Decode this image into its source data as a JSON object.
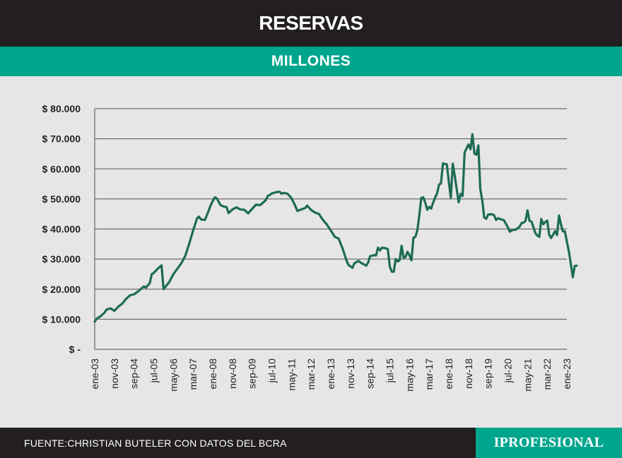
{
  "header": {
    "title": "RESERVAS",
    "subtitle": "MILLONES"
  },
  "footer": {
    "source": "FUENTE:CHRISTIAN BUTELER CON DATOS DEL BCRA",
    "logo": "IPROFESIONAL"
  },
  "colors": {
    "line": "#1d6b55",
    "accent": "#00a58e",
    "dark": "#231f20",
    "grid": "#6e6e6e"
  },
  "chart_data": {
    "type": "line",
    "title": "RESERVAS",
    "subtitle": "MILLONES",
    "xlabel": "",
    "ylabel": "",
    "ylim": [
      0,
      80000
    ],
    "grid": true,
    "y_ticks": [
      {
        "value": 80000,
        "label": "$ 80.000"
      },
      {
        "value": 70000,
        "label": "$ 70.000"
      },
      {
        "value": 60000,
        "label": "$ 60.000"
      },
      {
        "value": 50000,
        "label": "$ 50.000"
      },
      {
        "value": 40000,
        "label": "$ 40.000"
      },
      {
        "value": 30000,
        "label": "$ 30.000"
      },
      {
        "value": 20000,
        "label": "$ 20.000"
      },
      {
        "value": 10000,
        "label": "$ 10.000"
      },
      {
        "value": 0,
        "label": "$ -"
      }
    ],
    "x_ticks": [
      {
        "x": 0,
        "label": "ene-03"
      },
      {
        "x": 10,
        "label": "nov-03"
      },
      {
        "x": 20,
        "label": "sep-04"
      },
      {
        "x": 30,
        "label": "jul-05"
      },
      {
        "x": 40,
        "label": "may-06"
      },
      {
        "x": 50,
        "label": "mar-07"
      },
      {
        "x": 60,
        "label": "ene-08"
      },
      {
        "x": 70,
        "label": "nov-08"
      },
      {
        "x": 80,
        "label": "sep-09"
      },
      {
        "x": 90,
        "label": "jul-10"
      },
      {
        "x": 100,
        "label": "may-11"
      },
      {
        "x": 110,
        "label": "mar-12"
      },
      {
        "x": 120,
        "label": "ene-13"
      },
      {
        "x": 130,
        "label": "nov-13"
      },
      {
        "x": 140,
        "label": "sep-14"
      },
      {
        "x": 150,
        "label": "jul-15"
      },
      {
        "x": 160,
        "label": "may-16"
      },
      {
        "x": 170,
        "label": "mar-17"
      },
      {
        "x": 180,
        "label": "ene-18"
      },
      {
        "x": 190,
        "label": "nov-18"
      },
      {
        "x": 200,
        "label": "sep-19"
      },
      {
        "x": 210,
        "label": "jul-20"
      },
      {
        "x": 220,
        "label": "may-21"
      },
      {
        "x": 230,
        "label": "mar-22"
      },
      {
        "x": 240,
        "label": "ene-23"
      }
    ],
    "x_range": [
      0,
      240
    ],
    "series": [
      {
        "name": "Reservas",
        "points": [
          [
            0,
            9200
          ],
          [
            1,
            10200
          ],
          [
            3,
            11000
          ],
          [
            5,
            12200
          ],
          [
            6,
            13200
          ],
          [
            8,
            13600
          ],
          [
            10,
            12800
          ],
          [
            12,
            14200
          ],
          [
            14,
            15200
          ],
          [
            16,
            16800
          ],
          [
            18,
            18000
          ],
          [
            20,
            18300
          ],
          [
            22,
            19200
          ],
          [
            24,
            20400
          ],
          [
            25,
            20900
          ],
          [
            26,
            20500
          ],
          [
            28,
            22000
          ],
          [
            29,
            25000
          ],
          [
            30,
            25400
          ],
          [
            32,
            26800
          ],
          [
            34,
            27900
          ],
          [
            35,
            20000
          ],
          [
            36,
            20800
          ],
          [
            38,
            22500
          ],
          [
            40,
            25000
          ],
          [
            42,
            26800
          ],
          [
            44,
            28600
          ],
          [
            46,
            31000
          ],
          [
            48,
            35000
          ],
          [
            50,
            39500
          ],
          [
            52,
            43500
          ],
          [
            53,
            44100
          ],
          [
            54,
            43200
          ],
          [
            56,
            43000
          ],
          [
            58,
            46200
          ],
          [
            59,
            48000
          ],
          [
            61,
            50500
          ],
          [
            62,
            50200
          ],
          [
            64,
            47900
          ],
          [
            66,
            47400
          ],
          [
            67,
            47300
          ],
          [
            68,
            45300
          ],
          [
            70,
            46500
          ],
          [
            72,
            47200
          ],
          [
            74,
            46500
          ],
          [
            76,
            46400
          ],
          [
            78,
            45200
          ],
          [
            80,
            46700
          ],
          [
            82,
            48100
          ],
          [
            84,
            47900
          ],
          [
            86,
            49000
          ],
          [
            87,
            49600
          ],
          [
            88,
            51000
          ],
          [
            89,
            51300
          ],
          [
            90,
            51800
          ],
          [
            92,
            52200
          ],
          [
            94,
            52400
          ],
          [
            95,
            51700
          ],
          [
            96,
            52000
          ],
          [
            98,
            51700
          ],
          [
            100,
            50300
          ],
          [
            102,
            47600
          ],
          [
            103,
            46000
          ],
          [
            105,
            46500
          ],
          [
            107,
            47000
          ],
          [
            108,
            47800
          ],
          [
            110,
            46300
          ],
          [
            112,
            45500
          ],
          [
            114,
            45000
          ],
          [
            116,
            43000
          ],
          [
            118,
            41500
          ],
          [
            119,
            40500
          ],
          [
            121,
            38500
          ],
          [
            122,
            37400
          ],
          [
            124,
            36800
          ],
          [
            126,
            33500
          ],
          [
            127,
            31500
          ],
          [
            128,
            29500
          ],
          [
            129,
            28000
          ],
          [
            130,
            27600
          ],
          [
            131,
            27100
          ],
          [
            132,
            28600
          ],
          [
            134,
            29400
          ],
          [
            136,
            28500
          ],
          [
            137,
            28200
          ],
          [
            138,
            27800
          ],
          [
            139,
            28900
          ],
          [
            140,
            31000
          ],
          [
            142,
            31300
          ],
          [
            143,
            31200
          ],
          [
            144,
            33800
          ],
          [
            145,
            32900
          ],
          [
            146,
            33800
          ],
          [
            148,
            33600
          ],
          [
            149,
            33300
          ],
          [
            150,
            27500
          ],
          [
            151,
            25800
          ],
          [
            152,
            25800
          ],
          [
            153,
            30000
          ],
          [
            154,
            29200
          ],
          [
            155,
            29600
          ],
          [
            156,
            34400
          ],
          [
            157,
            30400
          ],
          [
            158,
            30700
          ],
          [
            159,
            32400
          ],
          [
            160,
            31300
          ],
          [
            161,
            29600
          ],
          [
            162,
            37100
          ],
          [
            163,
            37400
          ],
          [
            164,
            39600
          ],
          [
            165,
            44700
          ],
          [
            166,
            50300
          ],
          [
            167,
            50500
          ],
          [
            168,
            48800
          ],
          [
            169,
            46400
          ],
          [
            170,
            47400
          ],
          [
            171,
            46800
          ],
          [
            172,
            48700
          ],
          [
            173,
            50400
          ],
          [
            174,
            51800
          ],
          [
            175,
            54700
          ],
          [
            176,
            55200
          ],
          [
            177,
            61800
          ],
          [
            178,
            61600
          ],
          [
            179,
            61500
          ],
          [
            180,
            55700
          ],
          [
            181,
            50300
          ],
          [
            182,
            61700
          ],
          [
            183,
            57800
          ],
          [
            184,
            53300
          ],
          [
            185,
            48900
          ],
          [
            186,
            51700
          ],
          [
            187,
            51000
          ],
          [
            188,
            65400
          ],
          [
            189,
            66800
          ],
          [
            190,
            68100
          ],
          [
            191,
            66500
          ],
          [
            192,
            71500
          ],
          [
            193,
            65000
          ],
          [
            194,
            64700
          ],
          [
            195,
            67800
          ],
          [
            196,
            53400
          ],
          [
            197,
            49500
          ],
          [
            198,
            43800
          ],
          [
            199,
            43400
          ],
          [
            200,
            44800
          ],
          [
            202,
            44900
          ],
          [
            203,
            44600
          ],
          [
            204,
            43000
          ],
          [
            205,
            43600
          ],
          [
            206,
            43300
          ],
          [
            208,
            42900
          ],
          [
            210,
            40600
          ],
          [
            211,
            39100
          ],
          [
            212,
            39600
          ],
          [
            214,
            39800
          ],
          [
            216,
            40800
          ],
          [
            217,
            42000
          ],
          [
            218,
            42100
          ],
          [
            219,
            42700
          ],
          [
            220,
            46200
          ],
          [
            221,
            42700
          ],
          [
            222,
            42500
          ],
          [
            223,
            40600
          ],
          [
            224,
            38600
          ],
          [
            225,
            37800
          ],
          [
            226,
            37400
          ],
          [
            227,
            43300
          ],
          [
            228,
            41600
          ],
          [
            229,
            42300
          ],
          [
            230,
            42800
          ],
          [
            231,
            38100
          ],
          [
            232,
            37000
          ],
          [
            233,
            38100
          ],
          [
            234,
            39300
          ],
          [
            235,
            38000
          ],
          [
            236,
            44500
          ],
          [
            237,
            41600
          ],
          [
            238,
            39200
          ],
          [
            239,
            39200
          ],
          [
            240,
            35800
          ],
          [
            241,
            32600
          ],
          [
            242,
            28400
          ],
          [
            243,
            24000
          ],
          [
            244,
            27700
          ],
          [
            245,
            27800
          ]
        ]
      }
    ]
  }
}
